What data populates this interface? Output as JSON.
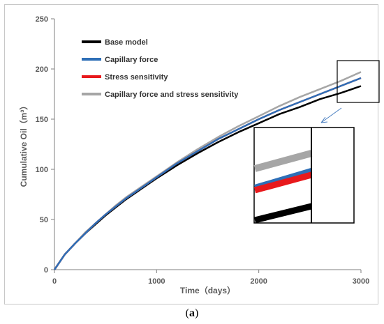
{
  "chart_data": {
    "type": "line",
    "xlabel": "Time（days）",
    "ylabel": "Cumulative Oil（m³）",
    "xlim": [
      0,
      3000
    ],
    "ylim": [
      0,
      250
    ],
    "x_ticks": [
      "0",
      "1000",
      "2000",
      "3000"
    ],
    "y_ticks": [
      "0",
      "50",
      "100",
      "150",
      "200",
      "250"
    ],
    "grid": false,
    "legend_position": "top-left",
    "series": [
      {
        "name": "Base model",
        "color": "#000000",
        "x": [
          0,
          100,
          200,
          300,
          400,
          500,
          600,
          700,
          800,
          900,
          1000,
          1200,
          1400,
          1600,
          1800,
          2000,
          2200,
          2400,
          2600,
          2800,
          3000
        ],
        "y": [
          0,
          15,
          26,
          36,
          45,
          54,
          62,
          70,
          77,
          84,
          91,
          104,
          116,
          127,
          137,
          146,
          155,
          162,
          170,
          176,
          183
        ]
      },
      {
        "name": "Capillary force",
        "color": "#2e6fb7",
        "x": [
          0,
          100,
          200,
          300,
          400,
          500,
          600,
          700,
          800,
          900,
          1000,
          1200,
          1400,
          1600,
          1800,
          2000,
          2200,
          2400,
          2600,
          2800,
          3000
        ],
        "y": [
          0,
          15,
          26,
          36,
          46,
          55,
          63,
          71,
          78,
          85,
          92,
          106,
          118,
          130,
          140,
          150,
          159,
          167,
          175,
          183,
          191
        ]
      },
      {
        "name": "Stress sensitivity",
        "color": "#e8191c",
        "x": [
          0,
          100,
          200,
          300,
          400,
          500,
          600,
          700,
          800,
          900,
          1000,
          1200,
          1400,
          1600,
          1800,
          2000,
          2200,
          2400,
          2600,
          2800,
          3000
        ],
        "y": [
          0,
          15,
          26,
          36,
          46,
          55,
          63,
          71,
          78,
          85,
          92,
          106,
          118,
          130,
          140,
          150,
          159,
          167,
          175,
          183,
          191
        ]
      },
      {
        "name": "Capillary force and stress sensitivity",
        "color": "#a6a6a6",
        "x": [
          0,
          100,
          200,
          300,
          400,
          500,
          600,
          700,
          800,
          900,
          1000,
          1200,
          1400,
          1600,
          1800,
          2000,
          2200,
          2400,
          2600,
          2800,
          3000
        ],
        "y": [
          0,
          15,
          26,
          37,
          46,
          55,
          64,
          72,
          79,
          86,
          93,
          107,
          120,
          132,
          143,
          153,
          163,
          172,
          180,
          188,
          197
        ]
      }
    ],
    "inset": {
      "note": "zoomed view of region near x=2800–3000",
      "lines": [
        {
          "series": "Capillary force and stress sensitivity",
          "color": "#a6a6a6"
        },
        {
          "series": "Capillary force",
          "color": "#2e6fb7"
        },
        {
          "series": "Stress sensitivity",
          "color": "#e8191c"
        },
        {
          "series": "Base model",
          "color": "#000000"
        }
      ]
    }
  },
  "caption": "a"
}
